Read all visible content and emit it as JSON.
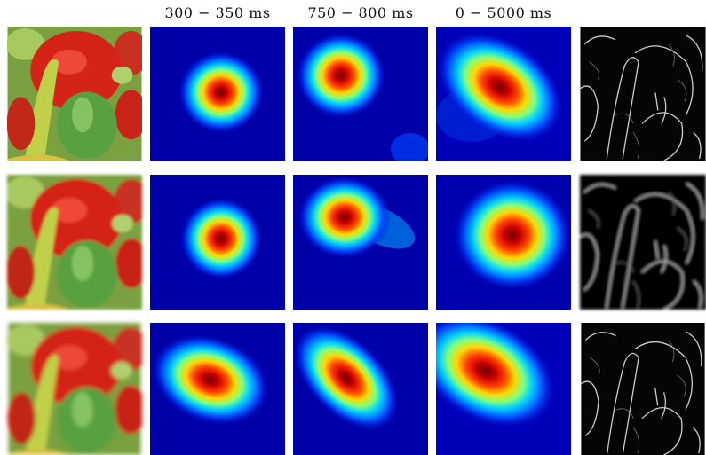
{
  "header": {
    "columns": [
      "300 − 350 ms",
      "750 − 800 ms",
      "0 − 5000 ms"
    ]
  }
}
